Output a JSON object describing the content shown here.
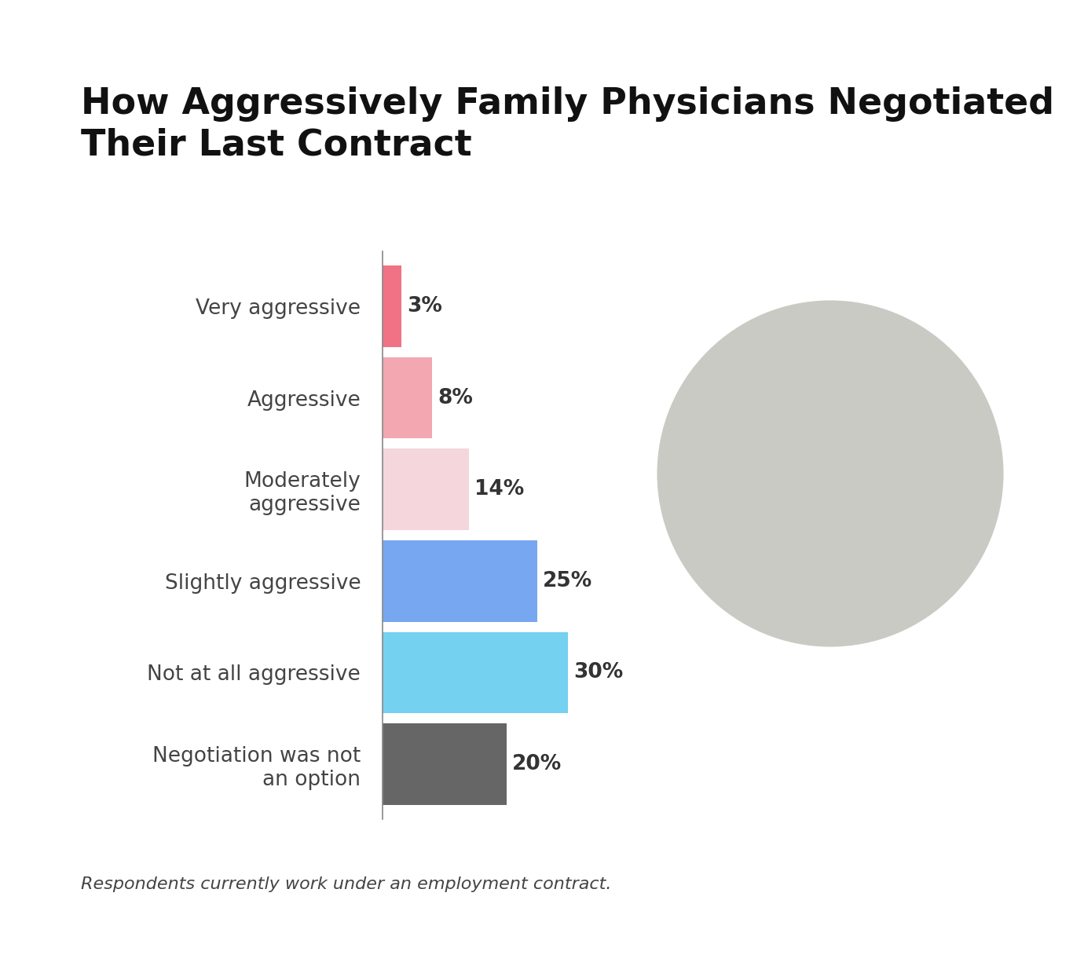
{
  "chart_data": {
    "type": "bar",
    "orientation": "horizontal",
    "title": "How Aggressively Family Physicians Negotiated Their Last Contract",
    "categories": [
      "Very aggressive",
      "Aggressive",
      "Moderately\naggressive",
      "Slightly aggressive",
      "Not at all aggressive",
      "Negotiation was not\nan option"
    ],
    "values": [
      3,
      8,
      14,
      25,
      30,
      20
    ],
    "value_labels": [
      "3%",
      "8%",
      "14%",
      "25%",
      "30%",
      "20%"
    ],
    "colors": [
      "#f07385",
      "#f2a7b1",
      "#f5d6dd",
      "#77a7f0",
      "#74d1f0",
      "#666666"
    ],
    "xlim": [
      0,
      40
    ],
    "xticks": [],
    "tick_labels": "y",
    "data_labels": true,
    "grid": false,
    "note": "Respondents currently work under an employment contract."
  }
}
